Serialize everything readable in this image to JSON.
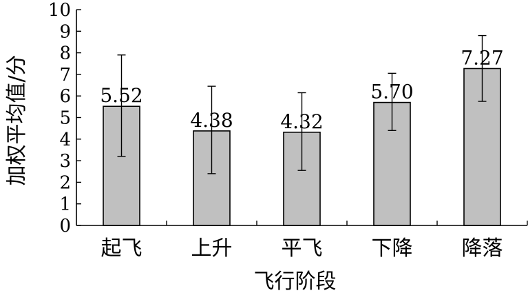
{
  "chart_data": {
    "type": "bar",
    "title": "",
    "xlabel": "飞行阶段",
    "ylabel": "加权平均值/分",
    "categories": [
      "起飞",
      "上升",
      "平飞",
      "下降",
      "降落"
    ],
    "values": [
      5.52,
      4.38,
      4.32,
      5.7,
      7.27
    ],
    "value_labels": [
      "5.52",
      "4.38",
      "4.32",
      "5.70",
      "7.27"
    ],
    "error_bars": [
      {
        "low": 3.2,
        "high": 7.9
      },
      {
        "low": 2.4,
        "high": 6.45
      },
      {
        "low": 2.55,
        "high": 6.15
      },
      {
        "low": 4.4,
        "high": 7.05
      },
      {
        "low": 5.75,
        "high": 8.8
      }
    ],
    "ylim": [
      0,
      10
    ],
    "yticks": [
      "0",
      "1",
      "2",
      "3",
      "4",
      "5",
      "6",
      "7",
      "8",
      "9",
      "10"
    ],
    "grid": false,
    "legend": "none",
    "colors": {
      "bar_fill": "#c0c0c0",
      "bar_stroke": "#000000"
    }
  }
}
